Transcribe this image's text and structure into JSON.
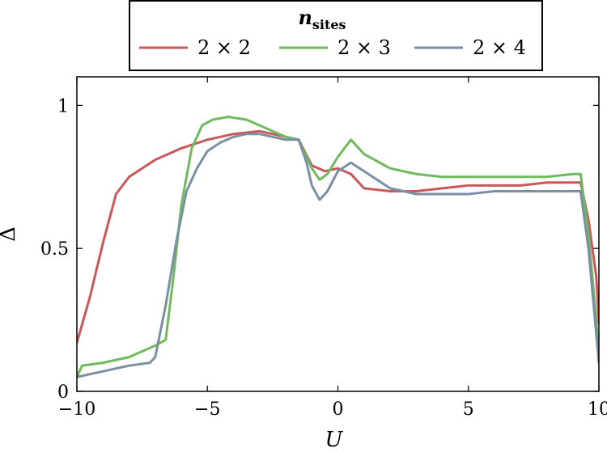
{
  "chart_data": {
    "type": "line",
    "xlabel": "U",
    "ylabel": "Δ",
    "xlim": [
      -10,
      10
    ],
    "ylim": [
      0,
      1.1
    ],
    "x_ticks": [
      -10,
      -5,
      0,
      5,
      10
    ],
    "x_tick_labels": [
      "−10",
      "−5",
      "0",
      "5",
      "10"
    ],
    "y_ticks": [
      0,
      0.5,
      1
    ],
    "y_tick_labels": [
      "0",
      "0.5",
      "1"
    ],
    "grid": false,
    "legend": {
      "placement": "top-center",
      "title_main": "n",
      "title_sub": "sites"
    },
    "series": [
      {
        "name": "2 × 2",
        "color": "#c8585a",
        "x": [
          -10,
          -9.5,
          -9,
          -8.5,
          -8,
          -7,
          -6,
          -5,
          -4,
          -3,
          -2,
          -1.5,
          -1,
          -0.5,
          0,
          0.5,
          1,
          2,
          3,
          4,
          5,
          6,
          7,
          8,
          9,
          9.3,
          9.6,
          9.9,
          10
        ],
        "y": [
          0.17,
          0.33,
          0.52,
          0.69,
          0.75,
          0.81,
          0.85,
          0.88,
          0.9,
          0.91,
          0.89,
          0.88,
          0.79,
          0.77,
          0.78,
          0.76,
          0.71,
          0.7,
          0.7,
          0.71,
          0.72,
          0.72,
          0.72,
          0.73,
          0.73,
          0.73,
          0.6,
          0.4,
          0.24
        ]
      },
      {
        "name": "2 × 3",
        "color": "#6fba5c",
        "x": [
          -10,
          -9.8,
          -9,
          -8,
          -7,
          -6.6,
          -6.3,
          -6,
          -5.6,
          -5.2,
          -4.8,
          -4.2,
          -3.5,
          -3,
          -2.5,
          -2,
          -1.5,
          -1,
          -0.7,
          -0.4,
          0,
          0.5,
          1,
          2,
          3,
          4,
          5,
          6,
          7,
          8,
          9,
          9.3,
          9.6,
          9.9,
          10
        ],
        "y": [
          0.05,
          0.09,
          0.1,
          0.12,
          0.16,
          0.18,
          0.4,
          0.65,
          0.85,
          0.93,
          0.95,
          0.96,
          0.95,
          0.93,
          0.91,
          0.89,
          0.88,
          0.78,
          0.74,
          0.76,
          0.82,
          0.88,
          0.83,
          0.78,
          0.76,
          0.75,
          0.75,
          0.75,
          0.75,
          0.75,
          0.76,
          0.76,
          0.55,
          0.25,
          0.1
        ]
      },
      {
        "name": "2 × 4",
        "color": "#7b8fa3",
        "x": [
          -10,
          -9,
          -8,
          -7.2,
          -7,
          -6.6,
          -6.2,
          -5.8,
          -5.4,
          -5,
          -4.5,
          -4,
          -3.5,
          -3,
          -2.5,
          -2,
          -1.5,
          -1.2,
          -1,
          -0.7,
          -0.4,
          0,
          0.5,
          1,
          2,
          3,
          4,
          5,
          6,
          7,
          8,
          9,
          9.3,
          9.6,
          9.9,
          10
        ],
        "y": [
          0.05,
          0.07,
          0.09,
          0.1,
          0.12,
          0.3,
          0.52,
          0.7,
          0.78,
          0.84,
          0.87,
          0.89,
          0.9,
          0.9,
          0.89,
          0.88,
          0.88,
          0.8,
          0.72,
          0.67,
          0.7,
          0.77,
          0.8,
          0.77,
          0.71,
          0.69,
          0.69,
          0.69,
          0.7,
          0.7,
          0.7,
          0.7,
          0.7,
          0.5,
          0.2,
          0.1
        ]
      }
    ]
  }
}
